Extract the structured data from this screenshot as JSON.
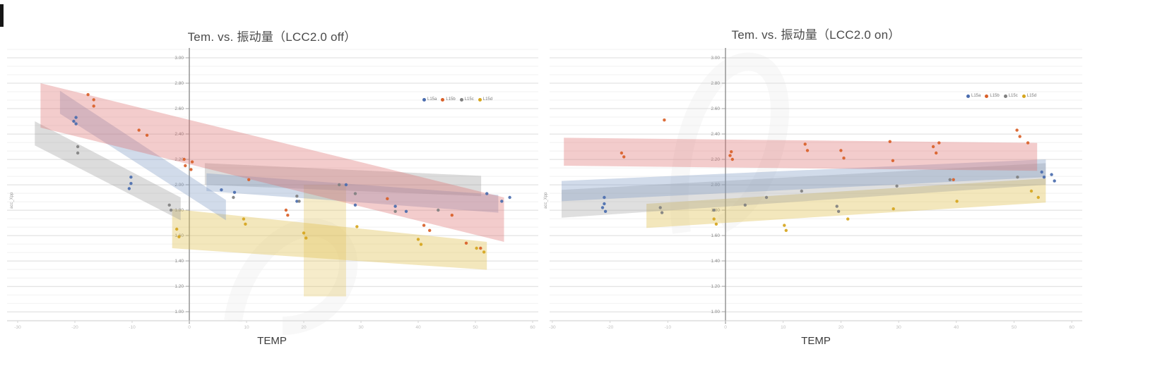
{
  "page": {
    "background": "#ffffff"
  },
  "colors": {
    "series_blue": "#4a6cae",
    "series_orange": "#d95f28",
    "series_gray": "#808080",
    "series_yellow": "#d6a51d",
    "band_red": "#dd6e6e",
    "band_blue": "#7a98c4",
    "band_gray": "#949494",
    "band_yellow": "#e0c050"
  },
  "chart_data": [
    {
      "type": "scatter",
      "title": "Tem. vs. 振动量（LCC2.0 off）",
      "xlabel": "TEMP",
      "ylabel": "acc_Xpp",
      "xlim": [
        -32,
        61
      ],
      "ylim": [
        0.93,
        3.04
      ],
      "grid": true,
      "legend_position": "top-right",
      "x_ticks": [
        -30,
        -20,
        -10,
        0,
        10,
        20,
        30,
        40,
        50,
        60
      ],
      "y_ticks": [
        "3.00",
        "2.80",
        "2.60",
        "2.40",
        "2.20",
        "2.00",
        "1.80",
        "1.60",
        "1.40",
        "1.20",
        "1.00"
      ],
      "legend": [
        {
          "label": "L15a",
          "color": "#4a6cae"
        },
        {
          "label": "L15b",
          "color": "#d95f28"
        },
        {
          "label": "L15c",
          "color": "#808080"
        },
        {
          "label": "L15d",
          "color": "#d6a51d"
        }
      ],
      "bands": [
        {
          "name": "yellow-fit-band",
          "color": "#e0c050",
          "opacity": 0.38,
          "points": [
            [
              -3,
              1.81
            ],
            [
              52,
              1.55
            ],
            [
              52,
              1.33
            ],
            [
              -3,
              1.5
            ]
          ]
        },
        {
          "name": "yellow-overlap-band",
          "color": "#e0c050",
          "opacity": 0.3,
          "points": [
            [
              20,
              2.0
            ],
            [
              27.4,
              2.0
            ],
            [
              27.4,
              1.12
            ],
            [
              20,
              1.12
            ]
          ]
        },
        {
          "name": "gray-steep-band",
          "color": "#949494",
          "opacity": 0.33,
          "points": [
            [
              -27,
              2.5
            ],
            [
              -1.5,
              1.9
            ],
            [
              -1.5,
              1.72
            ],
            [
              -27,
              2.31
            ]
          ]
        },
        {
          "name": "gray-shallow-band",
          "color": "#949494",
          "opacity": 0.33,
          "points": [
            [
              2.7,
              2.17
            ],
            [
              51,
              2.07
            ],
            [
              51,
              1.91
            ],
            [
              2.7,
              2.0
            ]
          ]
        },
        {
          "name": "blue-steep-band",
          "color": "#7a98c4",
          "opacity": 0.35,
          "points": [
            [
              -22.6,
              2.74
            ],
            [
              6.4,
              1.88
            ],
            [
              6.4,
              1.72
            ],
            [
              -22.6,
              2.56
            ]
          ]
        },
        {
          "name": "blue-shallow-band",
          "color": "#7a98c4",
          "opacity": 0.35,
          "points": [
            [
              3,
              2.09
            ],
            [
              54,
              1.92
            ],
            [
              54,
              1.78
            ],
            [
              3,
              1.95
            ]
          ]
        },
        {
          "name": "red-fit-band",
          "color": "#dd6e6e",
          "opacity": 0.35,
          "points": [
            [
              -26,
              2.8
            ],
            [
              55,
              1.9
            ],
            [
              55,
              1.55
            ],
            [
              -26,
              2.45
            ]
          ]
        }
      ],
      "series": [
        {
          "name": "L15a",
          "color": "#4a6cae",
          "points": [
            [
              -19.8,
              2.53
            ],
            [
              -19.8,
              2.48
            ],
            [
              -20.2,
              2.5
            ],
            [
              -10.2,
              2.06
            ],
            [
              -10.2,
              2.01
            ],
            [
              -10.5,
              1.97
            ],
            [
              5.6,
              1.96
            ],
            [
              7.9,
              1.94
            ],
            [
              18.8,
              1.87
            ],
            [
              27.4,
              2.0
            ],
            [
              29,
              1.84
            ],
            [
              36,
              1.83
            ],
            [
              37.9,
              1.79
            ],
            [
              52,
              1.93
            ],
            [
              54.6,
              1.87
            ],
            [
              56,
              1.9
            ]
          ]
        },
        {
          "name": "L15b",
          "color": "#d95f28",
          "points": [
            [
              -17.7,
              2.71
            ],
            [
              -16.7,
              2.67
            ],
            [
              -16.7,
              2.62
            ],
            [
              -8.8,
              2.43
            ],
            [
              -7.4,
              2.39
            ],
            [
              -0.9,
              2.2
            ],
            [
              -0.7,
              2.15
            ],
            [
              0.3,
              2.12
            ],
            [
              0.5,
              2.18
            ],
            [
              10.4,
              2.04
            ],
            [
              16.9,
              1.8
            ],
            [
              17.2,
              1.76
            ],
            [
              34.6,
              1.89
            ],
            [
              41,
              1.68
            ],
            [
              42,
              1.64
            ],
            [
              45.9,
              1.76
            ],
            [
              48.4,
              1.54
            ],
            [
              50.9,
              1.5
            ]
          ]
        },
        {
          "name": "L15c",
          "color": "#808080",
          "points": [
            [
              -19.5,
              2.3
            ],
            [
              -19.5,
              2.25
            ],
            [
              -3.5,
              1.84
            ],
            [
              -3.2,
              1.8
            ],
            [
              7.7,
              1.9
            ],
            [
              18.8,
              1.91
            ],
            [
              19.2,
              1.87
            ],
            [
              26.2,
              2.0
            ],
            [
              29,
              1.93
            ],
            [
              36,
              1.79
            ],
            [
              43.5,
              1.8
            ]
          ]
        },
        {
          "name": "L15d",
          "color": "#d6a51d",
          "points": [
            [
              -2.2,
              1.65
            ],
            [
              -1.8,
              1.59
            ],
            [
              9.5,
              1.73
            ],
            [
              9.8,
              1.69
            ],
            [
              20,
              1.62
            ],
            [
              20.4,
              1.58
            ],
            [
              29.3,
              1.67
            ],
            [
              40,
              1.57
            ],
            [
              40.5,
              1.53
            ],
            [
              50.2,
              1.5
            ],
            [
              51.5,
              1.47
            ]
          ]
        }
      ]
    },
    {
      "type": "scatter",
      "title": "Tem. vs. 振动量（LCC2.0 on）",
      "xlabel": "TEMP",
      "ylabel": "acc_Xpp",
      "xlim": [
        -30.8,
        61.5
      ],
      "ylim": [
        0.93,
        3.04
      ],
      "grid": true,
      "legend_position": "top-right",
      "x_ticks": [
        -30,
        -20,
        -10,
        0,
        10,
        20,
        30,
        40,
        50,
        60
      ],
      "y_ticks": [
        "3.00",
        "2.80",
        "2.60",
        "2.40",
        "2.20",
        "2.00",
        "1.80",
        "1.60",
        "1.40",
        "1.20",
        "1.00"
      ],
      "legend": [
        {
          "label": "L15a",
          "color": "#4a6cae"
        },
        {
          "label": "L15b",
          "color": "#d95f28"
        },
        {
          "label": "L15c",
          "color": "#808080"
        },
        {
          "label": "L15d",
          "color": "#d6a51d"
        }
      ],
      "bands": [
        {
          "name": "yellow-fit-band",
          "color": "#e0c050",
          "opacity": 0.38,
          "points": [
            [
              -13.7,
              1.85
            ],
            [
              55.5,
              2.05
            ],
            [
              55.5,
              1.86
            ],
            [
              -13.7,
              1.66
            ]
          ]
        },
        {
          "name": "gray-fit-band",
          "color": "#949494",
          "opacity": 0.3,
          "points": [
            [
              -28.4,
              1.96
            ],
            [
              55.5,
              2.17
            ],
            [
              55.5,
              2.0
            ],
            [
              -28.4,
              1.74
            ]
          ]
        },
        {
          "name": "blue-fit-band",
          "color": "#7a98c4",
          "opacity": 0.35,
          "points": [
            [
              -28.4,
              2.03
            ],
            [
              55.5,
              2.2
            ],
            [
              55.5,
              2.06
            ],
            [
              -28.4,
              1.87
            ]
          ]
        },
        {
          "name": "red-fit-band",
          "color": "#dd6e6e",
          "opacity": 0.35,
          "points": [
            [
              -28,
              2.37
            ],
            [
              54,
              2.33
            ],
            [
              54,
              2.11
            ],
            [
              -28,
              2.15
            ]
          ]
        }
      ],
      "series": [
        {
          "name": "L15a",
          "color": "#4a6cae",
          "points": [
            [
              -21,
              1.9
            ],
            [
              -21,
              1.85
            ],
            [
              -21.3,
              1.82
            ],
            [
              -20.8,
              1.79
            ],
            [
              54.8,
              2.1
            ],
            [
              55.2,
              2.06
            ],
            [
              56.5,
              2.08
            ],
            [
              57,
              2.03
            ]
          ]
        },
        {
          "name": "L15b",
          "color": "#d95f28",
          "points": [
            [
              -10.6,
              2.51
            ],
            [
              -18,
              2.25
            ],
            [
              -17.6,
              2.22
            ],
            [
              0.8,
              2.23
            ],
            [
              1.2,
              2.2
            ],
            [
              1,
              2.26
            ],
            [
              13.8,
              2.32
            ],
            [
              14.2,
              2.27
            ],
            [
              20,
              2.27
            ],
            [
              20.5,
              2.21
            ],
            [
              28.5,
              2.34
            ],
            [
              29,
              2.19
            ],
            [
              36,
              2.3
            ],
            [
              37,
              2.33
            ],
            [
              36.5,
              2.25
            ],
            [
              39.5,
              2.04
            ],
            [
              50.5,
              2.43
            ],
            [
              51,
              2.38
            ],
            [
              52.4,
              2.33
            ]
          ]
        },
        {
          "name": "L15c",
          "color": "#808080",
          "points": [
            [
              -11.3,
              1.82
            ],
            [
              -11,
              1.78
            ],
            [
              -2,
              1.8
            ],
            [
              3.4,
              1.84
            ],
            [
              7.1,
              1.9
            ],
            [
              13.2,
              1.95
            ],
            [
              19.3,
              1.83
            ],
            [
              19.6,
              1.79
            ],
            [
              29.7,
              1.99
            ],
            [
              38.9,
              2.04
            ],
            [
              50.6,
              2.06
            ]
          ]
        },
        {
          "name": "L15d",
          "color": "#d6a51d",
          "points": [
            [
              -2,
              1.73
            ],
            [
              -1.6,
              1.69
            ],
            [
              10.2,
              1.68
            ],
            [
              10.5,
              1.64
            ],
            [
              21.2,
              1.73
            ],
            [
              29.1,
              1.81
            ],
            [
              40.1,
              1.87
            ],
            [
              53,
              1.95
            ],
            [
              54.2,
              1.9
            ]
          ]
        }
      ]
    }
  ]
}
